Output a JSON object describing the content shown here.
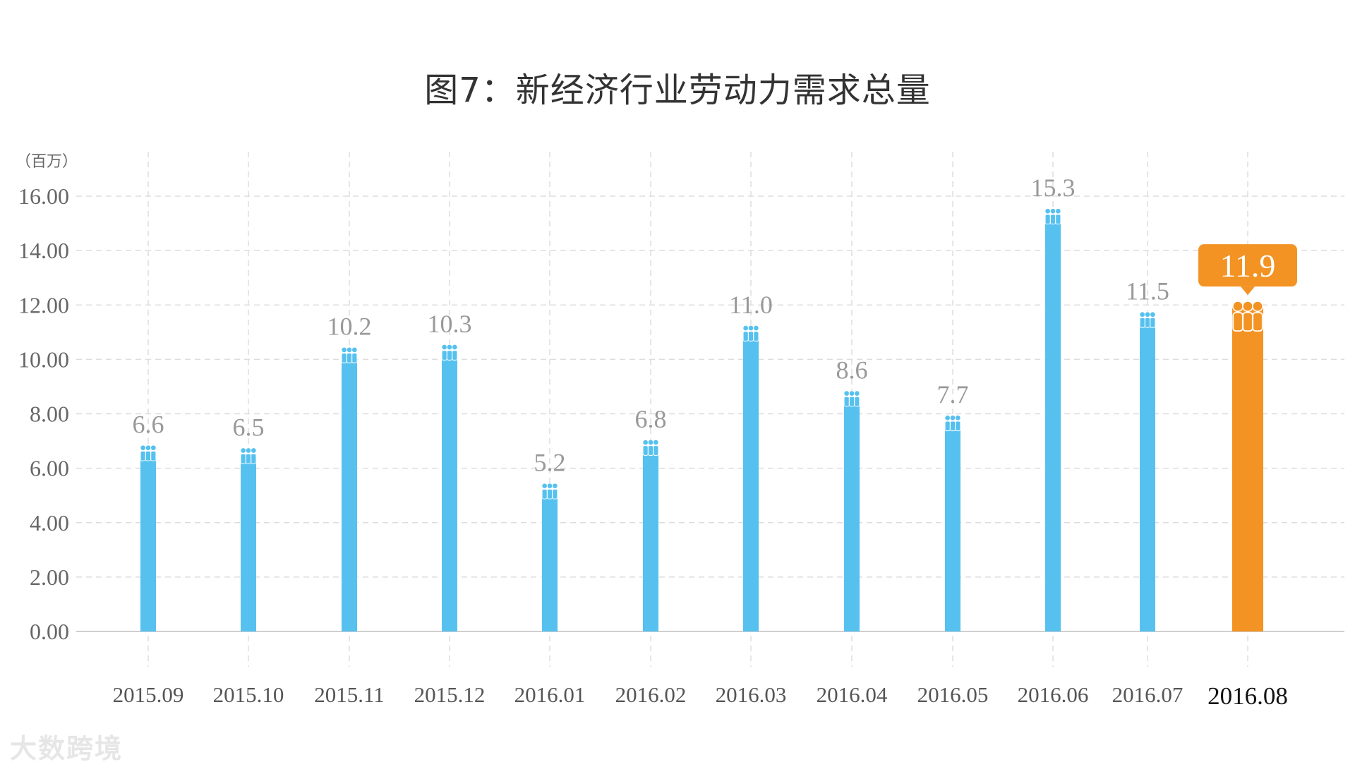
{
  "chart_data": {
    "type": "bar",
    "title": "图7：新经济行业劳动力需求总量",
    "y_unit": "（百万）",
    "categories": [
      "2015.09",
      "2015.10",
      "2015.11",
      "2015.12",
      "2016.01",
      "2016.02",
      "2016.03",
      "2016.04",
      "2016.05",
      "2016.06",
      "2016.07",
      "2016.08"
    ],
    "values": [
      6.6,
      6.5,
      10.2,
      10.3,
      5.2,
      6.8,
      11.0,
      8.6,
      7.7,
      15.3,
      11.5,
      11.9
    ],
    "value_labels": [
      "6.6",
      "6.5",
      "10.2",
      "10.3",
      "5.2",
      "6.8",
      "11.0",
      "8.6",
      "7.7",
      "15.3",
      "11.5",
      "11.9"
    ],
    "ylim": [
      0,
      16
    ],
    "yticks": [
      "0.00",
      "2.00",
      "4.00",
      "6.00",
      "8.00",
      "10.00",
      "12.00",
      "14.00",
      "16.00"
    ],
    "grid": true,
    "highlight_index": 11,
    "bar_color": "#56c1ef",
    "highlight_color": "#f39323",
    "bar_icon": "people-icon"
  },
  "watermark": "大数跨境"
}
